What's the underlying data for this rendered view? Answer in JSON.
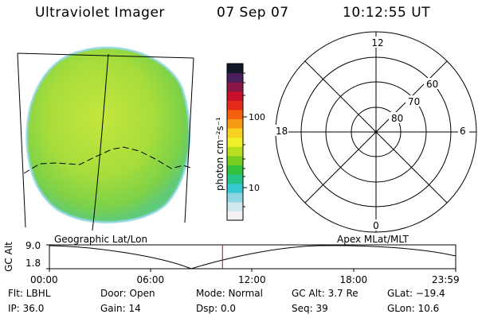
{
  "header": {
    "instrument": "Ultraviolet Imager",
    "date": "07 Sep 07",
    "time": "10:12:55 UT"
  },
  "colorbar": {
    "unit_label": "photon cm⁻²s⁻¹",
    "tick_high": "100",
    "tick_low": "10",
    "colors": [
      "#f2f2f2",
      "#cfe8ee",
      "#8fd6e4",
      "#36c9d2",
      "#27c48a",
      "#34c23c",
      "#77cc22",
      "#b8e020",
      "#f0f02a",
      "#f8d020",
      "#f79a14",
      "#f26010",
      "#e42a18",
      "#c8102a",
      "#8a1846",
      "#4a1e5c",
      "#101828"
    ]
  },
  "polar_plot": {
    "labels": {
      "top": "12",
      "bottom": "0",
      "left": "18",
      "right": "6",
      "ring_60": "60",
      "ring_70": "70",
      "ring_80": "80"
    }
  },
  "image_labels": {
    "left": "Geographic Lat/Lon",
    "right": "Apex MLat/MLT"
  },
  "altitude_plot": {
    "ylabel": "GC Alt",
    "ymax": "9.0",
    "ymin": "1.8",
    "xticks": [
      "00:00",
      "06:00",
      "12:00",
      "18:00",
      "23:59"
    ],
    "current_time_marker_fraction": 0.426
  },
  "info": {
    "flt": "Flt: LBHL",
    "ip": "IP: 36.0",
    "door": "Door: Open",
    "gain": "Gain: 14",
    "mode": "Mode: Normal",
    "dsp": "Dsp:    0.0",
    "gc_alt": "GC Alt: 3.7 Re",
    "seq": "Seq: 39",
    "glat": "GLat: −19.4",
    "glon": "GLon:   10.6"
  }
}
